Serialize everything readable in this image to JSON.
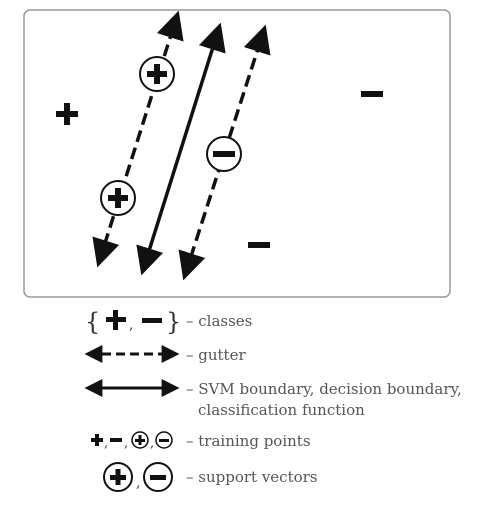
{
  "colors": {
    "ink": "#111111",
    "frame": "#9a9a9a",
    "legend_text": "#555555"
  },
  "diagram": {
    "symbols": {
      "plus": "+",
      "minus": "−"
    }
  },
  "legend": {
    "classes": "– classes",
    "gutter": "– gutter",
    "boundary_line1": "– SVM boundary, decision boundary,",
    "boundary_line2": "classification function",
    "training": "– training points",
    "support": "– support vectors",
    "comma": ","
  }
}
